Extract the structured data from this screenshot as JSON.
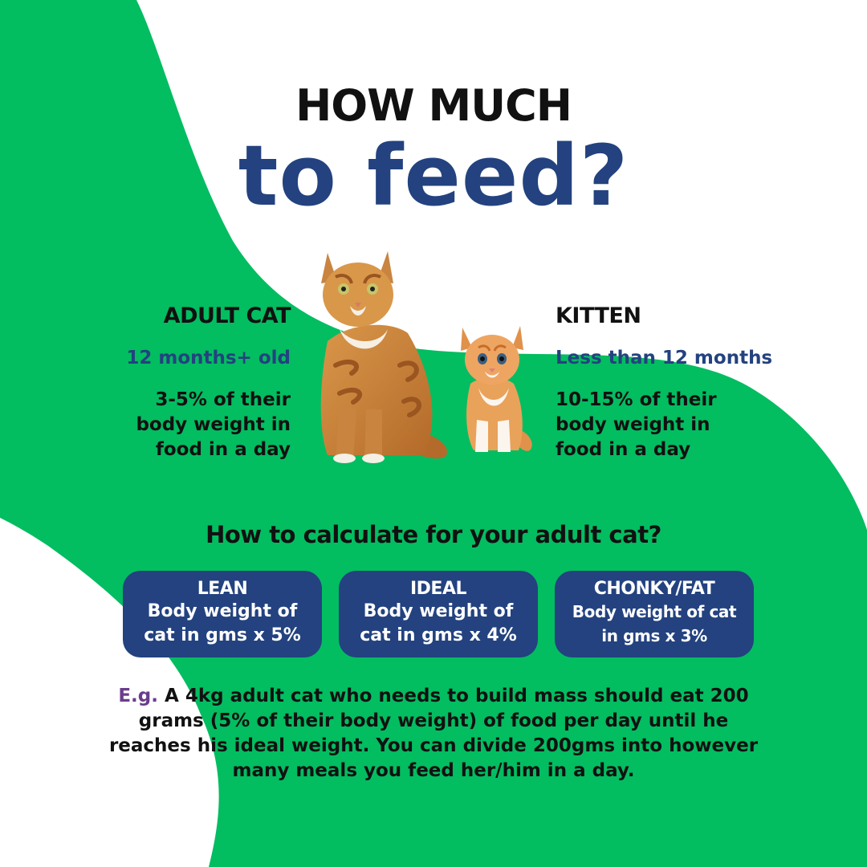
{
  "colors": {
    "green": "#03bd61",
    "navy": "#23427f",
    "black": "#111111",
    "purple": "#6a3d8c",
    "white": "#ffffff"
  },
  "title": {
    "line1": "HOW MUCH",
    "line2": "to feed?"
  },
  "adult": {
    "heading": "ADULT CAT",
    "age": "12 months+ old",
    "line1": "3-5% of their",
    "line2": "body weight in",
    "line3": "food in a day",
    "image": "adult-cat-photo"
  },
  "kitten": {
    "heading": "KITTEN",
    "age": "Less than 12 months",
    "line1": "10-15% of their",
    "line2": "body weight in",
    "line3": "food in a day",
    "image": "kitten-photo"
  },
  "calc": {
    "question": "How to calculate for your adult cat?",
    "cards": [
      {
        "title": "LEAN",
        "line1": "Body weight of",
        "line2": "cat in gms x 5%"
      },
      {
        "title": "IDEAL",
        "line1": "Body weight of",
        "line2": "cat in gms x 4%"
      },
      {
        "title": "CHONKY/FAT",
        "line1": "Body weight of cat",
        "line2": "in gms x 3%"
      }
    ]
  },
  "example": {
    "prefix": "E.g.",
    "line1": " A 4kg adult cat who needs to build mass should eat 200",
    "line2": "grams (5% of their body weight) of food per day until he",
    "line3": "reaches his ideal weight. You can divide 200gms into however",
    "line4": "many meals you feed her/him in a day."
  }
}
